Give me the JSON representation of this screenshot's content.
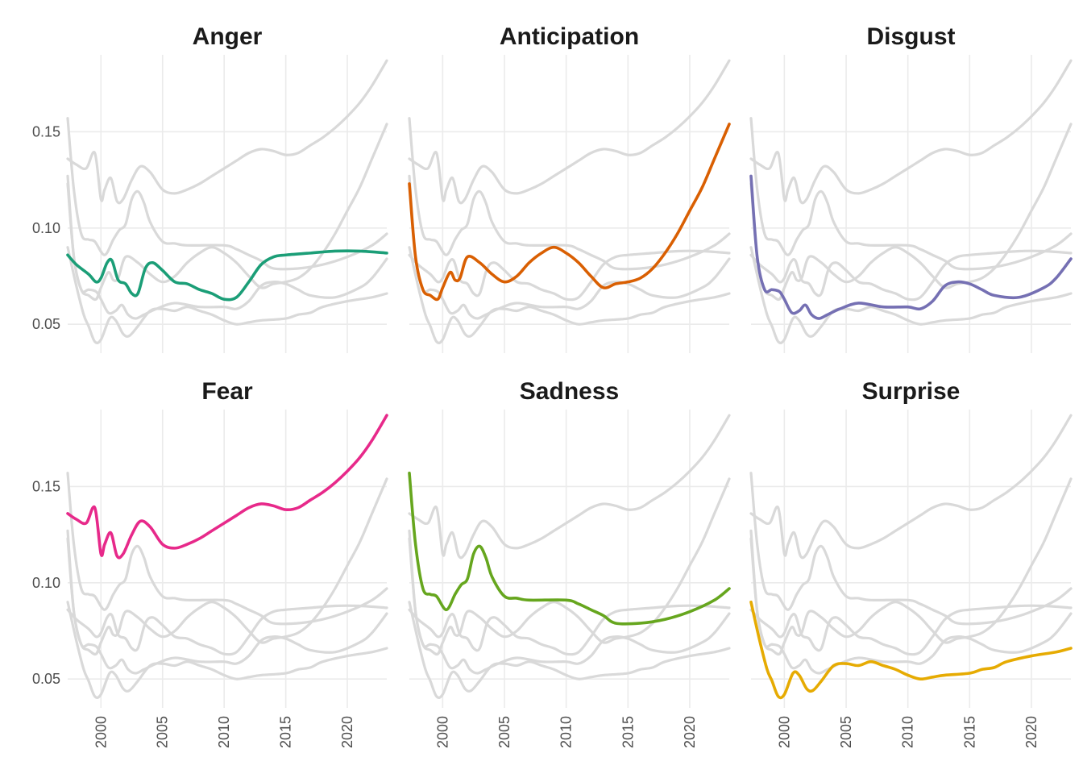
{
  "chart_data": {
    "type": "line",
    "layout": "faceted small multiples, 2 rows x 3 columns, non-highlighted series shown in light grey in every panel",
    "x_ticks": [
      2000,
      2005,
      2010,
      2015,
      2020
    ],
    "y_ticks": [
      0.05,
      0.1,
      0.15
    ],
    "y_tick_labels": [
      "0.05",
      "0.10",
      "0.15"
    ],
    "xlim": [
      1997.3,
      2023.2
    ],
    "ylim": [
      0.035,
      0.19
    ],
    "grid": true,
    "background_color": "#d9d9d9",
    "series": [
      {
        "name": "Anger",
        "color": "#1b9e77",
        "points": [
          [
            1997.3,
            0.086
          ],
          [
            1998,
            0.081
          ],
          [
            1999,
            0.076
          ],
          [
            1999.6,
            0.072
          ],
          [
            2000,
            0.074
          ],
          [
            2000.5,
            0.082
          ],
          [
            2000.9,
            0.083
          ],
          [
            2001.4,
            0.073
          ],
          [
            2002,
            0.071
          ],
          [
            2002.5,
            0.066
          ],
          [
            2003,
            0.066
          ],
          [
            2003.6,
            0.079
          ],
          [
            2004.2,
            0.082
          ],
          [
            2005,
            0.078
          ],
          [
            2006,
            0.072
          ],
          [
            2007,
            0.071
          ],
          [
            2008,
            0.068
          ],
          [
            2009,
            0.066
          ],
          [
            2010,
            0.063
          ],
          [
            2011,
            0.064
          ],
          [
            2012,
            0.072
          ],
          [
            2013,
            0.081
          ],
          [
            2014,
            0.085
          ],
          [
            2015,
            0.086
          ],
          [
            2017,
            0.087
          ],
          [
            2019,
            0.088
          ],
          [
            2021,
            0.088
          ],
          [
            2023.2,
            0.087
          ]
        ]
      },
      {
        "name": "Anticipation",
        "color": "#d95f02",
        "points": [
          [
            1997.3,
            0.123
          ],
          [
            1997.8,
            0.085
          ],
          [
            1998.4,
            0.068
          ],
          [
            1999,
            0.065
          ],
          [
            1999.6,
            0.063
          ],
          [
            2000,
            0.069
          ],
          [
            2000.6,
            0.077
          ],
          [
            2001,
            0.073
          ],
          [
            2001.4,
            0.074
          ],
          [
            2002,
            0.085
          ],
          [
            2003,
            0.082
          ],
          [
            2004,
            0.076
          ],
          [
            2005,
            0.072
          ],
          [
            2006,
            0.075
          ],
          [
            2007,
            0.082
          ],
          [
            2008,
            0.087
          ],
          [
            2009,
            0.09
          ],
          [
            2010,
            0.087
          ],
          [
            2011,
            0.082
          ],
          [
            2012,
            0.075
          ],
          [
            2013,
            0.069
          ],
          [
            2014,
            0.071
          ],
          [
            2015,
            0.072
          ],
          [
            2016,
            0.074
          ],
          [
            2017,
            0.079
          ],
          [
            2018,
            0.087
          ],
          [
            2019,
            0.097
          ],
          [
            2020,
            0.109
          ],
          [
            2021,
            0.121
          ],
          [
            2022,
            0.136
          ],
          [
            2023.2,
            0.154
          ]
        ]
      },
      {
        "name": "Disgust",
        "color": "#7570b3",
        "points": [
          [
            1997.3,
            0.127
          ],
          [
            1997.8,
            0.085
          ],
          [
            1998.4,
            0.068
          ],
          [
            1999,
            0.068
          ],
          [
            1999.6,
            0.067
          ],
          [
            2000,
            0.063
          ],
          [
            2000.6,
            0.056
          ],
          [
            2001.2,
            0.057
          ],
          [
            2001.7,
            0.06
          ],
          [
            2002.2,
            0.055
          ],
          [
            2002.8,
            0.053
          ],
          [
            2003.5,
            0.055
          ],
          [
            2004.5,
            0.058
          ],
          [
            2006,
            0.061
          ],
          [
            2008,
            0.059
          ],
          [
            2010,
            0.059
          ],
          [
            2011,
            0.058
          ],
          [
            2012,
            0.062
          ],
          [
            2013,
            0.07
          ],
          [
            2014,
            0.072
          ],
          [
            2015,
            0.071
          ],
          [
            2016,
            0.068
          ],
          [
            2017,
            0.065
          ],
          [
            2019,
            0.064
          ],
          [
            2021,
            0.069
          ],
          [
            2022,
            0.074
          ],
          [
            2023.2,
            0.084
          ]
        ]
      },
      {
        "name": "Fear",
        "color": "#e7298a",
        "points": [
          [
            1997.3,
            0.136
          ],
          [
            1998,
            0.133
          ],
          [
            1998.8,
            0.131
          ],
          [
            1999.5,
            0.139
          ],
          [
            2000,
            0.115
          ],
          [
            2000.3,
            0.12
          ],
          [
            2000.8,
            0.126
          ],
          [
            2001.3,
            0.114
          ],
          [
            2001.8,
            0.115
          ],
          [
            2002.5,
            0.125
          ],
          [
            2003.2,
            0.132
          ],
          [
            2004,
            0.129
          ],
          [
            2005,
            0.12
          ],
          [
            2006,
            0.118
          ],
          [
            2007,
            0.12
          ],
          [
            2008,
            0.123
          ],
          [
            2009,
            0.127
          ],
          [
            2010,
            0.131
          ],
          [
            2011,
            0.135
          ],
          [
            2012,
            0.139
          ],
          [
            2013,
            0.141
          ],
          [
            2014,
            0.14
          ],
          [
            2015,
            0.138
          ],
          [
            2016,
            0.139
          ],
          [
            2017,
            0.143
          ],
          [
            2018,
            0.147
          ],
          [
            2019,
            0.152
          ],
          [
            2020,
            0.158
          ],
          [
            2021,
            0.165
          ],
          [
            2022,
            0.174
          ],
          [
            2023.2,
            0.187
          ]
        ]
      },
      {
        "name": "Sadness",
        "color": "#66a61e",
        "points": [
          [
            1997.3,
            0.157
          ],
          [
            1997.8,
            0.12
          ],
          [
            1998.4,
            0.097
          ],
          [
            1999,
            0.094
          ],
          [
            1999.5,
            0.093
          ],
          [
            2000.3,
            0.086
          ],
          [
            2001,
            0.094
          ],
          [
            2001.5,
            0.099
          ],
          [
            2002,
            0.102
          ],
          [
            2002.5,
            0.115
          ],
          [
            2003,
            0.119
          ],
          [
            2003.5,
            0.113
          ],
          [
            2004,
            0.103
          ],
          [
            2005,
            0.093
          ],
          [
            2006,
            0.092
          ],
          [
            2007,
            0.091
          ],
          [
            2010,
            0.091
          ],
          [
            2011,
            0.089
          ],
          [
            2012,
            0.086
          ],
          [
            2013,
            0.083
          ],
          [
            2014,
            0.079
          ],
          [
            2016,
            0.079
          ],
          [
            2018,
            0.081
          ],
          [
            2020,
            0.085
          ],
          [
            2022,
            0.091
          ],
          [
            2023.2,
            0.097
          ]
        ]
      },
      {
        "name": "Surprise",
        "color": "#e6ab02",
        "points": [
          [
            1997.3,
            0.09
          ],
          [
            1998,
            0.07
          ],
          [
            1998.6,
            0.055
          ],
          [
            1999,
            0.049
          ],
          [
            1999.5,
            0.041
          ],
          [
            2000,
            0.042
          ],
          [
            2000.7,
            0.053
          ],
          [
            2001.2,
            0.052
          ],
          [
            2001.8,
            0.045
          ],
          [
            2002.3,
            0.044
          ],
          [
            2003,
            0.049
          ],
          [
            2004,
            0.057
          ],
          [
            2005,
            0.058
          ],
          [
            2006,
            0.057
          ],
          [
            2007,
            0.059
          ],
          [
            2008,
            0.057
          ],
          [
            2009,
            0.055
          ],
          [
            2010,
            0.052
          ],
          [
            2011,
            0.05
          ],
          [
            2012,
            0.051
          ],
          [
            2013,
            0.052
          ],
          [
            2015,
            0.053
          ],
          [
            2016,
            0.055
          ],
          [
            2017,
            0.056
          ],
          [
            2018,
            0.059
          ],
          [
            2020,
            0.062
          ],
          [
            2022,
            0.064
          ],
          [
            2023.2,
            0.066
          ]
        ]
      }
    ]
  }
}
